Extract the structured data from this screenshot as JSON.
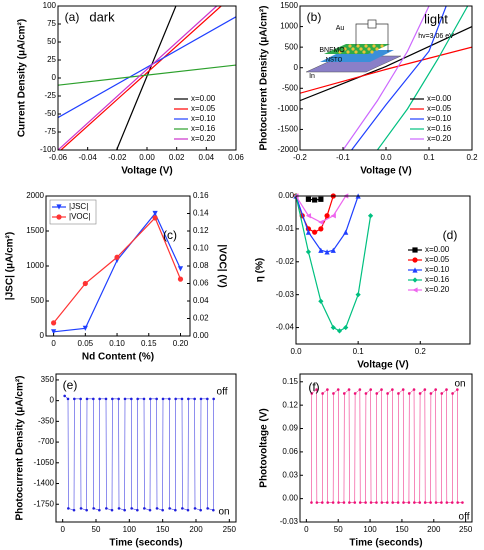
{
  "chart_data": [
    {
      "type": "line",
      "panel_label": "(a)",
      "annotations": [
        "dark"
      ],
      "xlabel": "Voltage (V)",
      "ylabel": "Current Density (μA/cm²)",
      "xlim": [
        -0.06,
        0.06
      ],
      "ylim": [
        -100,
        100
      ],
      "xticks": [
        -0.06,
        -0.04,
        -0.02,
        {
          "value": 0,
          "label": "0.00"
        },
        0.02,
        0.04,
        0.06
      ],
      "yticks": [
        -100,
        -75,
        -50,
        -25,
        0,
        25,
        50,
        75,
        100
      ],
      "legend": "lower right",
      "series": [
        {
          "name": "x=0.00",
          "color": "#000000",
          "x": [
            -0.0205,
            0.0195
          ],
          "values": [
            -100,
            100
          ]
        },
        {
          "name": "x=0.05",
          "color": "#ff0000",
          "x": [
            -0.058,
            0.05
          ],
          "values": [
            -100,
            100
          ]
        },
        {
          "name": "x=0.10",
          "color": "#1f3fff",
          "x": [
            -0.06,
            0.06
          ],
          "values": [
            -55,
            85
          ]
        },
        {
          "name": "x=0.16",
          "color": "#2ca02c",
          "x": [
            -0.06,
            0.06
          ],
          "values": [
            -10,
            18
          ]
        },
        {
          "name": "x=0.20",
          "color": "#cc33cc",
          "x": [
            -0.06,
            0.047
          ],
          "values": [
            -100,
            100
          ]
        }
      ]
    },
    {
      "type": "line",
      "panel_label": "(b)",
      "annotations": [
        "light",
        "hv=3.06 eV",
        "Au",
        "BNFMO",
        "NSTO",
        "In"
      ],
      "xlabel": "Voltage (V)",
      "ylabel": "Photocurrent Density (μA/cm²)",
      "xlim": [
        -0.2,
        0.2
      ],
      "ylim": [
        -2000,
        1500
      ],
      "xticks": [
        -0.2,
        -0.1,
        {
          "value": 0,
          "label": "0.0"
        },
        0.1,
        0.2
      ],
      "yticks": [
        -2000,
        -1500,
        -1000,
        -500,
        0,
        500,
        1000,
        1500
      ],
      "legend": "lower right",
      "series": [
        {
          "name": "x=0.00",
          "color": "#000000",
          "x": [
            -0.2,
            0,
            0.2
          ],
          "values": [
            -800,
            30,
            1000
          ]
        },
        {
          "name": "x=0.05",
          "color": "#ff0000",
          "x": [
            -0.2,
            0,
            0.2
          ],
          "values": [
            -620,
            -40,
            500
          ]
        },
        {
          "name": "x=0.10",
          "color": "#1f3fff",
          "x": [
            -0.08,
            0,
            0.1,
            0.14
          ],
          "values": [
            -2000,
            -900,
            400,
            1500
          ]
        },
        {
          "name": "x=0.16",
          "color": "#00c080",
          "x": [
            -0.02,
            0.05,
            0.12,
            0.19
          ],
          "values": [
            -2000,
            -1000,
            200,
            1500
          ]
        },
        {
          "name": "x=0.20",
          "color": "#cc66ff",
          "x": [
            -0.1,
            -0.02,
            0.05,
            0.1
          ],
          "values": [
            -2000,
            -800,
            400,
            1500
          ]
        }
      ]
    },
    {
      "type": "line",
      "panel_label": "(c)",
      "annotations": [],
      "xlabel": "Nd Content (%)",
      "ylabel": "|JSC| (μA/cm²)",
      "y2label": "|VOC| (V)",
      "ylabel_color": "#1f1fff",
      "y2label_color": "#ff0000",
      "xlim": [
        -0.012,
        0.215
      ],
      "ylim": [
        0,
        2000
      ],
      "y2lim": [
        0,
        0.16
      ],
      "xticks": [
        0,
        0.05,
        {
          "value": 0.1,
          "label": "0.10"
        },
        0.15,
        {
          "value": 0.2,
          "label": "0.20"
        }
      ],
      "yticks": [
        0,
        500,
        1000,
        1500,
        2000
      ],
      "y2ticks": [
        {
          "value": 0,
          "label": "0.00"
        },
        0.02,
        0.04,
        0.06,
        0.08,
        {
          "value": 0.1,
          "label": "0.10"
        },
        0.12,
        0.14,
        0.16
      ],
      "legend": "upper left",
      "x": [
        0,
        0.05,
        0.1,
        0.16,
        0.2
      ],
      "series": [
        {
          "name": "|JSC|",
          "color": "#1f3fff",
          "marker": "triangle-down",
          "values": [
            60,
            110,
            1080,
            1750,
            960
          ]
        },
        {
          "name": "|VOC|",
          "color": "#ff3333",
          "marker": "circle",
          "axis": "y2",
          "values": [
            0.015,
            0.06,
            0.09,
            0.135,
            0.065
          ]
        }
      ]
    },
    {
      "type": "line",
      "panel_label": "(d)",
      "annotations": [],
      "xlabel": "Voltage (V)",
      "ylabel": "η (%)",
      "xlim": [
        0,
        0.28
      ],
      "ylim": [
        -0.045,
        0
      ],
      "xticks": [
        {
          "value": 0,
          "label": "0.0"
        },
        0.1,
        0.2
      ],
      "yticks": [
        {
          "value": 0,
          "label": "0.00"
        },
        -0.01,
        -0.02,
        -0.03,
        -0.04
      ],
      "legend": "center right",
      "series": [
        {
          "name": "x=0.00",
          "color": "#000000",
          "marker": "square",
          "x": [
            0.02,
            0.03,
            0.04
          ],
          "values": [
            -0.001,
            -0.0012,
            -0.001
          ]
        },
        {
          "name": "x=0.05",
          "color": "#ff0000",
          "marker": "circle",
          "x": [
            0,
            0.01,
            0.02,
            0.03,
            0.04,
            0.05,
            0.06
          ],
          "values": [
            0,
            -0.006,
            -0.01,
            -0.011,
            -0.01,
            -0.006,
            0
          ]
        },
        {
          "name": "x=0.10",
          "color": "#1f3fff",
          "marker": "triangle",
          "x": [
            0,
            0.02,
            0.04,
            0.05,
            0.06,
            0.08,
            0.1
          ],
          "values": [
            0,
            -0.011,
            -0.0165,
            -0.017,
            -0.0165,
            -0.011,
            0
          ]
        },
        {
          "name": "x=0.16",
          "color": "#00c080",
          "marker": "diamond",
          "x": [
            0,
            0.02,
            0.04,
            0.06,
            0.07,
            0.08,
            0.1,
            0.12
          ],
          "values": [
            0,
            -0.017,
            -0.032,
            -0.04,
            -0.041,
            -0.04,
            -0.03,
            -0.006
          ]
        },
        {
          "name": "x=0.20",
          "color": "#ee66ee",
          "marker": "triangle-left",
          "x": [
            0,
            0.02,
            0.04,
            0.06,
            0.08
          ],
          "values": [
            0,
            -0.006,
            -0.008,
            -0.006,
            0
          ]
        }
      ]
    },
    {
      "type": "line",
      "panel_label": "(e)",
      "annotations": [
        "off",
        "on"
      ],
      "xlabel": "Time (seconds)",
      "ylabel": "Photocurrent Density (μA/cm²)",
      "xlim": [
        -10,
        260
      ],
      "ylim": [
        -2050,
        450
      ],
      "xticks": [
        0,
        50,
        100,
        150,
        200,
        250
      ],
      "yticks": [
        350,
        0,
        -350,
        -700,
        -1050,
        -1400,
        -1750
      ],
      "series": [
        {
          "color": "#1f1fdd",
          "marker": "dot",
          "x": [
            3,
            8,
            8.5,
            17,
            17.5,
            27,
            27.5,
            36,
            36.5,
            46,
            46.5,
            55,
            55.5,
            65,
            65.5,
            74,
            74.5,
            84,
            84.5,
            93,
            93.5,
            103,
            103.5,
            112,
            112.5,
            122,
            122.5,
            131,
            131.5,
            141,
            141.5,
            150,
            150.5,
            160,
            160.5,
            169,
            169.5,
            179,
            179.5,
            188,
            188.5,
            198,
            198.5,
            207,
            207.5,
            217,
            217.5,
            226,
            226.5
          ],
          "values": [
            80,
            30,
            -1820,
            -1850,
            30,
            30,
            -1820,
            -1850,
            30,
            30,
            -1820,
            -1850,
            30,
            30,
            -1820,
            -1850,
            30,
            30,
            -1820,
            -1850,
            30,
            30,
            -1820,
            -1850,
            30,
            30,
            -1820,
            -1850,
            30,
            30,
            -1820,
            -1850,
            30,
            30,
            -1820,
            -1850,
            30,
            30,
            -1820,
            -1850,
            30,
            30,
            -1820,
            -1850,
            30,
            30,
            -1820,
            -1850,
            30
          ]
        }
      ]
    },
    {
      "type": "line",
      "panel_label": "(f)",
      "annotations": [
        "on",
        "off"
      ],
      "xlabel": "Time (seconds)",
      "ylabel": "Photovoltage (V)",
      "xlim": [
        -10,
        260
      ],
      "ylim": [
        -0.03,
        0.16
      ],
      "xticks": [
        0,
        50,
        100,
        150,
        200,
        250
      ],
      "yticks": [
        -0.03,
        {
          "value": 0,
          "label": "0.00"
        },
        0.03,
        0.06,
        0.09,
        0.12,
        0.15
      ],
      "series": [
        {
          "color": "#ee1177",
          "marker": "dot",
          "x": [
            8,
            8.5,
            16,
            16.5,
            25,
            25.5,
            33,
            33.5,
            42,
            42.5,
            50,
            50.5,
            59,
            59.5,
            67,
            67.5,
            76,
            76.5,
            84,
            84.5,
            93,
            93.5,
            101,
            101.5,
            110,
            110.5,
            118,
            118.5,
            127,
            127.5,
            135,
            135.5,
            144,
            144.5,
            152,
            152.5,
            161,
            161.5,
            169,
            169.5,
            178,
            178.5,
            186,
            186.5,
            195,
            195.5,
            203,
            203.5,
            212,
            212.5,
            220,
            220.5,
            229,
            229.5,
            237,
            237.5,
            245
          ],
          "values": [
            -0.005,
            0.135,
            0.14,
            -0.005,
            -0.005,
            0.135,
            0.14,
            -0.005,
            -0.005,
            0.135,
            0.14,
            -0.005,
            -0.005,
            0.135,
            0.14,
            -0.005,
            -0.005,
            0.135,
            0.14,
            -0.005,
            -0.005,
            0.135,
            0.14,
            -0.005,
            -0.005,
            0.135,
            0.14,
            -0.005,
            -0.005,
            0.135,
            0.14,
            -0.005,
            -0.005,
            0.135,
            0.14,
            -0.005,
            -0.005,
            0.135,
            0.14,
            -0.005,
            -0.005,
            0.135,
            0.14,
            -0.005,
            -0.005,
            0.135,
            0.14,
            -0.005,
            -0.005,
            0.135,
            0.14,
            -0.005,
            -0.005,
            0.135,
            0.14,
            -0.005,
            -0.005
          ]
        }
      ]
    }
  ]
}
